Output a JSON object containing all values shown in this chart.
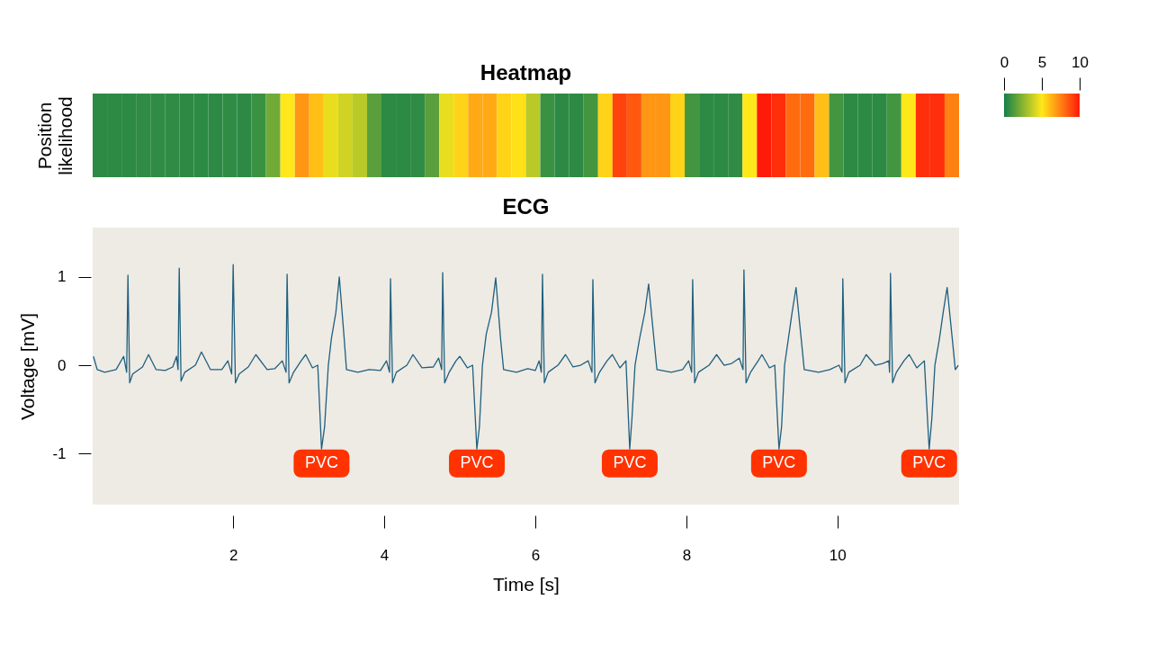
{
  "chart_data": [
    {
      "type": "heatmap",
      "title": "Heatmap",
      "ylabel": "Position likelihood",
      "tick_labels": false,
      "categories": [
        null,
        null,
        null,
        null,
        null,
        null,
        null,
        null,
        null,
        null,
        null,
        null,
        null,
        null,
        null,
        null,
        null,
        null,
        null,
        null,
        null,
        null,
        null,
        null,
        null,
        null,
        null,
        null,
        null,
        null,
        null,
        null,
        null,
        null,
        null,
        null,
        null,
        null,
        null,
        null,
        null,
        null,
        null,
        null,
        null,
        null,
        null,
        null,
        null,
        null,
        null,
        null,
        null,
        null,
        null,
        null,
        null,
        null,
        null,
        null
      ],
      "y_categories": [
        null
      ],
      "cells": [
        [
          0.5,
          0.5,
          0.5,
          0.6,
          0.6,
          0.6,
          0.5,
          0.5,
          0.5,
          0.6,
          0.5,
          0.8,
          2,
          5,
          7,
          6,
          4.5,
          4,
          3.5,
          1.5,
          0.5,
          0.5,
          0.6,
          1.5,
          4.5,
          5.5,
          6.5,
          6.5,
          5.5,
          5.2,
          3.5,
          0.8,
          0.5,
          0.5,
          1,
          5.5,
          9,
          8.5,
          7,
          7,
          5.5,
          1,
          0.5,
          0.5,
          0.6,
          5,
          10,
          9.5,
          8,
          8,
          6,
          1,
          0.5,
          0.5,
          0.5,
          1,
          5,
          9.5,
          9.5,
          7.5
        ]
      ],
      "clim": [
        0,
        10
      ],
      "cticks": [
        0,
        5,
        10
      ]
    },
    {
      "type": "line",
      "title": "ECG",
      "xlabel": "Time [s]",
      "ylabel": "Voltage [mV]",
      "xlim": [
        0.14,
        11.61
      ],
      "ylim": [
        -1.58,
        1.56
      ],
      "xticks": [
        2,
        4,
        6,
        8,
        10
      ],
      "yticks": [
        -1,
        0,
        1
      ],
      "grid": false,
      "x": [
        0.15,
        0.2,
        0.3,
        0.45,
        0.55,
        0.59,
        0.607,
        0.63,
        0.67,
        0.8,
        0.88,
        0.98,
        1.1,
        1.2,
        1.25,
        1.27,
        1.286,
        1.31,
        1.36,
        1.5,
        1.58,
        1.7,
        1.85,
        1.93,
        1.98,
        2.0,
        2.03,
        2.08,
        2.2,
        2.3,
        2.45,
        2.55,
        2.65,
        2.7,
        2.714,
        2.74,
        2.8,
        2.9,
        2.96,
        3.05,
        3.12,
        3.17,
        3.21,
        3.26,
        3.3,
        3.36,
        3.405,
        3.47,
        3.5,
        3.65,
        3.8,
        3.95,
        4.03,
        4.07,
        4.083,
        4.11,
        4.16,
        4.3,
        4.38,
        4.5,
        4.65,
        4.72,
        4.76,
        4.774,
        4.8,
        4.86,
        4.95,
        5.0,
        5.1,
        5.17,
        5.226,
        5.26,
        5.3,
        5.35,
        5.42,
        5.476,
        5.54,
        5.58,
        5.75,
        5.9,
        6.0,
        6.05,
        6.08,
        6.095,
        6.12,
        6.17,
        6.3,
        6.4,
        6.5,
        6.6,
        6.7,
        6.75,
        6.762,
        6.79,
        6.85,
        6.95,
        7.02,
        7.12,
        7.2,
        7.25,
        7.28,
        7.32,
        7.38,
        7.45,
        7.5,
        7.57,
        7.61,
        7.8,
        7.95,
        8.03,
        8.07,
        8.083,
        8.11,
        8.16,
        8.3,
        8.4,
        8.5,
        8.6,
        8.7,
        8.75,
        8.762,
        8.79,
        8.85,
        8.95,
        9.0,
        9.1,
        9.17,
        9.226,
        9.26,
        9.3,
        9.35,
        9.4,
        9.452,
        9.52,
        9.56,
        9.75,
        9.9,
        10.02,
        10.06,
        10.071,
        10.1,
        10.15,
        10.3,
        10.38,
        10.5,
        10.6,
        10.68,
        10.69,
        10.702,
        10.73,
        10.78,
        10.88,
        10.95,
        11.05,
        11.15,
        11.214,
        11.25,
        11.29,
        11.35,
        11.4,
        11.452,
        11.52,
        11.56,
        11.6
      ],
      "series": [
        {
          "color": "#1f5f7f",
          "values": [
            0.1,
            -0.05,
            -0.08,
            -0.05,
            0.1,
            -0.08,
            1.02,
            -0.2,
            -0.1,
            -0.02,
            0.12,
            -0.05,
            -0.06,
            -0.02,
            0.1,
            -0.05,
            1.1,
            -0.18,
            -0.08,
            0.0,
            0.15,
            -0.05,
            -0.05,
            0.05,
            -0.1,
            1.14,
            -0.2,
            -0.1,
            -0.02,
            0.12,
            -0.05,
            -0.04,
            0.05,
            -0.08,
            1.03,
            -0.2,
            -0.08,
            0.05,
            0.12,
            -0.03,
            0.0,
            -0.95,
            -0.7,
            0.0,
            0.3,
            0.6,
            1.0,
            0.3,
            -0.05,
            -0.08,
            -0.05,
            -0.06,
            0.05,
            -0.08,
            0.98,
            -0.2,
            -0.08,
            0.0,
            0.12,
            -0.03,
            -0.02,
            0.08,
            -0.05,
            1.05,
            -0.2,
            -0.08,
            0.05,
            0.1,
            -0.03,
            0.0,
            -0.95,
            -0.7,
            0.0,
            0.35,
            0.6,
            0.99,
            0.3,
            -0.05,
            -0.08,
            -0.04,
            -0.06,
            0.05,
            -0.08,
            1.03,
            -0.2,
            -0.08,
            0.0,
            0.12,
            -0.02,
            0.0,
            0.05,
            -0.08,
            0.97,
            -0.2,
            -0.08,
            0.05,
            0.12,
            -0.03,
            0.05,
            -0.95,
            -0.6,
            0.0,
            0.3,
            0.6,
            0.92,
            0.3,
            -0.05,
            -0.08,
            -0.05,
            0.05,
            -0.08,
            0.97,
            -0.2,
            -0.08,
            0.0,
            0.12,
            0.0,
            0.02,
            0.08,
            -0.05,
            1.08,
            -0.2,
            -0.08,
            0.05,
            0.12,
            -0.03,
            0.0,
            -0.95,
            -0.7,
            0.0,
            0.3,
            0.6,
            0.88,
            0.3,
            -0.05,
            -0.08,
            -0.05,
            0.0,
            -0.08,
            0.98,
            -0.2,
            -0.08,
            0.0,
            0.12,
            0.0,
            0.02,
            0.05,
            -0.08,
            1.04,
            -0.2,
            -0.08,
            0.05,
            0.12,
            -0.03,
            0.05,
            -0.95,
            -0.6,
            0.0,
            0.3,
            0.6,
            0.88,
            0.3,
            -0.05,
            0.0
          ]
        }
      ],
      "annotations": [
        {
          "text": "PVC",
          "x": 3.17,
          "y": -0.95
        },
        {
          "text": "PVC",
          "x": 5.226,
          "y": -0.95
        },
        {
          "text": "PVC",
          "x": 7.25,
          "y": -0.95
        },
        {
          "text": "PVC",
          "x": 9.226,
          "y": -0.95
        },
        {
          "text": "PVC",
          "x": 11.214,
          "y": -0.95
        }
      ]
    }
  ]
}
